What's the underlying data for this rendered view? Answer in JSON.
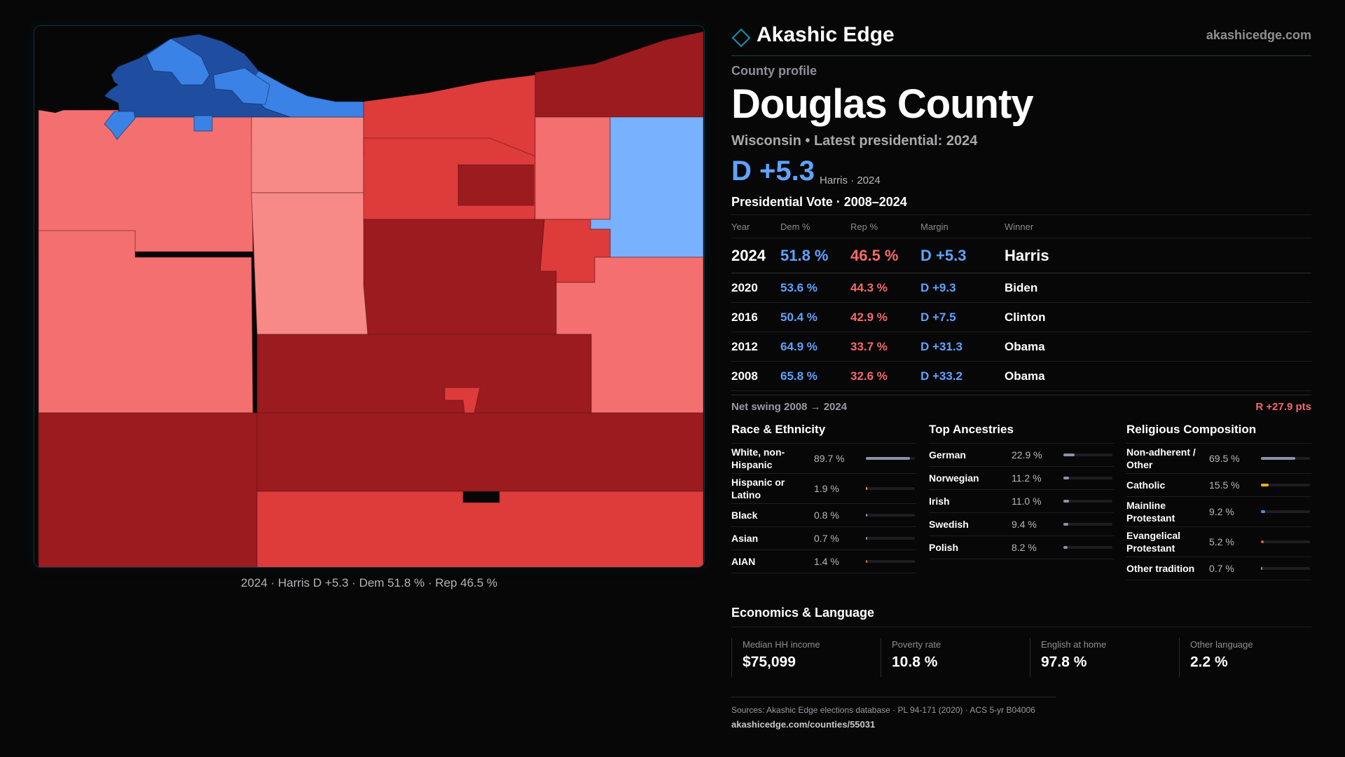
{
  "brand": {
    "name": "Akashic Edge",
    "url": "akashicedge.com"
  },
  "profile": {
    "kicker": "County profile",
    "county": "Douglas County",
    "subtitle": "Wisconsin • Latest presidential: 2024",
    "headline_margin": "D +5.3",
    "headline_note": "Harris · 2024"
  },
  "map": {
    "caption": "2024 · Harris D +5.3 · Dem 51.8 % · Rep 46.5 %",
    "colors": {
      "dem_dark": "#1f4ea0",
      "dem_mid": "#3b82e6",
      "dem_light": "#78b1fe",
      "rep_dark": "#9b1b1f",
      "rep_mid": "#de3b3b",
      "rep_light": "#f46f6f",
      "rep_pale": "#f78a86",
      "water": "#070708"
    }
  },
  "vote_table": {
    "title": "Presidential Vote · 2008–2024",
    "headers": {
      "year": "Year",
      "dem": "Dem %",
      "rep": "Rep %",
      "margin": "Margin",
      "winner": "Winner"
    },
    "rows": [
      {
        "year": "2024",
        "dem": "51.8 %",
        "rep": "46.5 %",
        "margin": "D +5.3",
        "winner": "Harris"
      },
      {
        "year": "2020",
        "dem": "53.6 %",
        "rep": "44.3 %",
        "margin": "D +9.3",
        "winner": "Biden"
      },
      {
        "year": "2016",
        "dem": "50.4 %",
        "rep": "42.9 %",
        "margin": "D +7.5",
        "winner": "Clinton"
      },
      {
        "year": "2012",
        "dem": "64.9 %",
        "rep": "33.7 %",
        "margin": "D +31.3",
        "winner": "Obama"
      },
      {
        "year": "2008",
        "dem": "65.8 %",
        "rep": "32.6 %",
        "margin": "D +33.2",
        "winner": "Obama"
      }
    ]
  },
  "swing": {
    "label": "Net swing 2008 → 2024",
    "value": "R +27.9 pts"
  },
  "race": {
    "title": "Race & Ethnicity",
    "items": [
      {
        "name": "White, non-Hispanic",
        "value": "89.7 %",
        "share": 0.897,
        "color": "#8b93a6"
      },
      {
        "name": "Hispanic or Latino",
        "value": "1.9 %",
        "share": 0.019,
        "color": "#e0a030"
      },
      {
        "name": "Black",
        "value": "0.8 %",
        "share": 0.008,
        "color": "#8b93a6"
      },
      {
        "name": "Asian",
        "value": "0.7 %",
        "share": 0.007,
        "color": "#8b93a6"
      },
      {
        "name": "AIAN",
        "value": "1.4 %",
        "share": 0.014,
        "color": "#c07838"
      }
    ]
  },
  "ancestry": {
    "title": "Top Ancestries",
    "items": [
      {
        "name": "German",
        "value": "22.9 %",
        "share": 0.229,
        "color": "#8b93a6"
      },
      {
        "name": "Norwegian",
        "value": "11.2 %",
        "share": 0.112,
        "color": "#8b93a6"
      },
      {
        "name": "Irish",
        "value": "11.0 %",
        "share": 0.11,
        "color": "#8b93a6"
      },
      {
        "name": "Swedish",
        "value": "9.4 %",
        "share": 0.094,
        "color": "#8b93a6"
      },
      {
        "name": "Polish",
        "value": "8.2 %",
        "share": 0.082,
        "color": "#8b93a6"
      }
    ]
  },
  "religion": {
    "title": "Religious Composition",
    "items": [
      {
        "name": "Non-adherent / Other",
        "value": "69.5 %",
        "share": 0.695,
        "color": "#8b93a6"
      },
      {
        "name": "Catholic",
        "value": "15.5 %",
        "share": 0.155,
        "color": "#e8b020"
      },
      {
        "name": "Mainline Protestant",
        "value": "9.2 %",
        "share": 0.092,
        "color": "#4a90e2"
      },
      {
        "name": "Evangelical Protestant",
        "value": "5.2 %",
        "share": 0.052,
        "color": "#e05a4a"
      },
      {
        "name": "Other tradition",
        "value": "0.7 %",
        "share": 0.007,
        "color": "#8b93a6"
      }
    ]
  },
  "economics": {
    "title": "Economics & Language",
    "cards": [
      {
        "label": "Median HH income",
        "value": "$75,099"
      },
      {
        "label": "Poverty rate",
        "value": "10.8 %"
      },
      {
        "label": "English at home",
        "value": "97.8 %"
      },
      {
        "label": "Other language",
        "value": "2.2 %"
      }
    ]
  },
  "sources": {
    "text": "Sources: Akashic Edge elections database · PL 94-171 (2020) · ACS 5-yr B04006",
    "url": "akashicedge.com/counties/55031"
  }
}
